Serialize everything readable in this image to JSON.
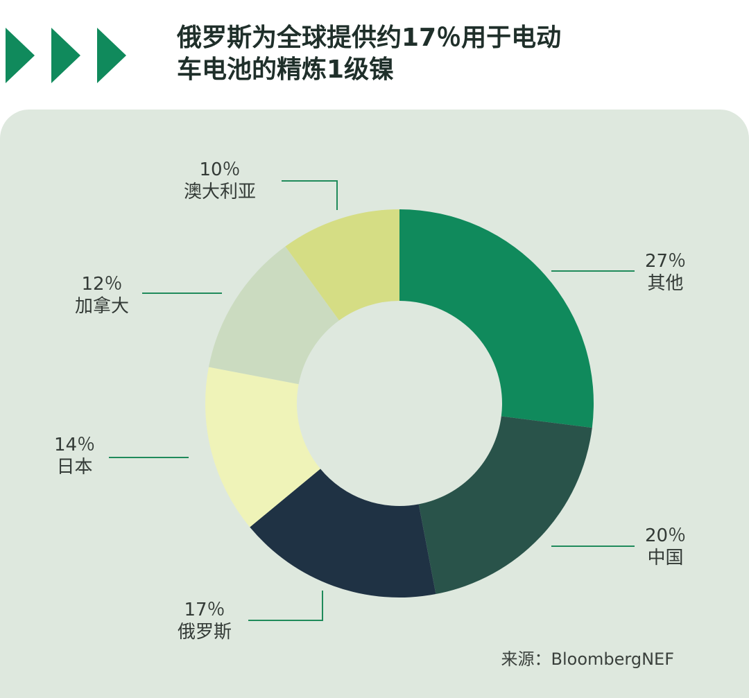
{
  "title_lines": [
    "俄罗斯为全球提供约17％用于电动",
    "车电池的精炼1级镍"
  ],
  "source": "来源：BloombergNEF",
  "colors": {
    "accent": "#108a5c",
    "panel": "#dee8de",
    "leader": "#1f8a5a"
  },
  "chart_data": {
    "type": "pie",
    "title": "俄罗斯为全球提供约17％用于电动车电池的精炼1级镍",
    "donut": true,
    "slices": [
      {
        "label": "其他",
        "value": 27,
        "pct": "27％",
        "color": "#108a5c"
      },
      {
        "label": "中国",
        "value": 20,
        "pct": "20％",
        "color": "#29534a"
      },
      {
        "label": "俄罗斯",
        "value": 17,
        "pct": "17％",
        "color": "#1f3244"
      },
      {
        "label": "日本",
        "value": 14,
        "pct": "14％",
        "color": "#eff3b8"
      },
      {
        "label": "加拿大",
        "value": 12,
        "pct": "12％",
        "color": "#cbdbc0"
      },
      {
        "label": "澳大利亚",
        "value": 10,
        "pct": "10％",
        "color": "#d5dd84"
      }
    ]
  }
}
